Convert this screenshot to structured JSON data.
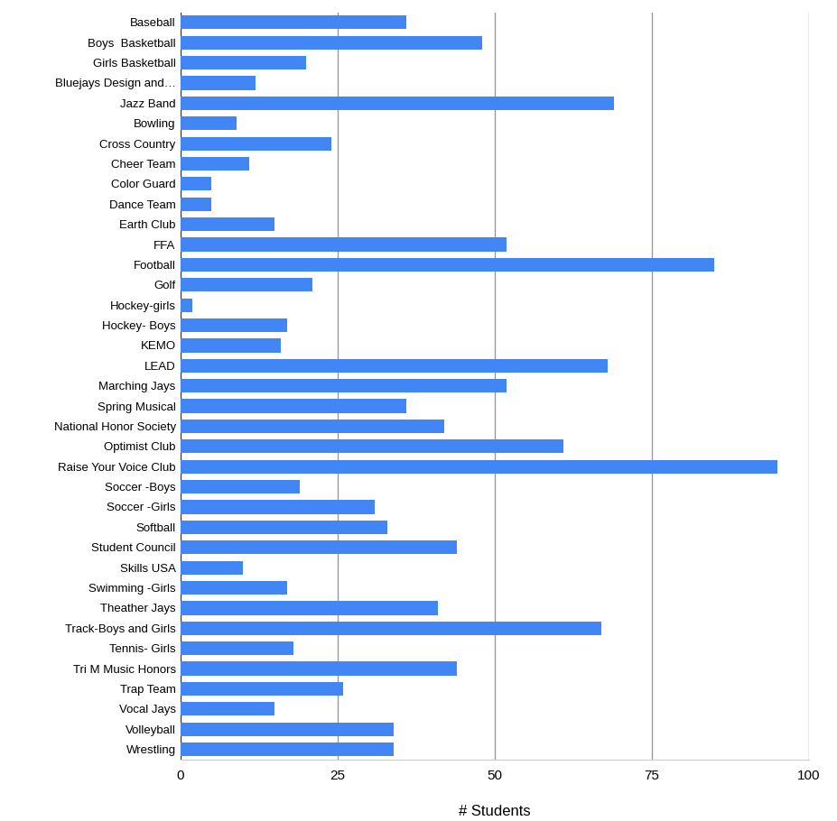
{
  "chart_data": {
    "type": "bar",
    "orientation": "horizontal",
    "categories": [
      "Baseball",
      "Boys  Basketball",
      "Girls Basketball",
      "Bluejays Design and…",
      "Jazz Band",
      "Bowling",
      "Cross Country",
      "Cheer Team",
      "Color Guard",
      "Dance Team",
      "Earth Club",
      "FFA",
      "Football",
      "Golf",
      "Hockey-girls",
      "Hockey- Boys",
      "KEMO",
      "LEAD",
      "Marching Jays",
      "Spring Musical",
      "National Honor Society",
      "Optimist Club",
      "Raise Your Voice Club",
      "Soccer -Boys",
      "Soccer -Girls",
      "Softball",
      "Student Council",
      "Skills USA",
      "Swimming -Girls",
      "Theather Jays",
      "Track-Boys and Girls",
      "Tennis- Girls",
      "Tri M Music Honors",
      "Trap Team",
      "Vocal Jays",
      "Volleyball",
      "Wrestling"
    ],
    "values": [
      36,
      48,
      20,
      12,
      69,
      9,
      24,
      11,
      5,
      5,
      15,
      52,
      85,
      21,
      2,
      17,
      16,
      68,
      52,
      36,
      42,
      61,
      95,
      19,
      31,
      33,
      44,
      10,
      17,
      41,
      67,
      18,
      44,
      26,
      15,
      34,
      34
    ],
    "color": "#4285f4",
    "x_label": "# Students",
    "xlim": [
      0,
      100
    ],
    "xticks": [
      0,
      25,
      50,
      75,
      100
    ],
    "grid": true
  }
}
